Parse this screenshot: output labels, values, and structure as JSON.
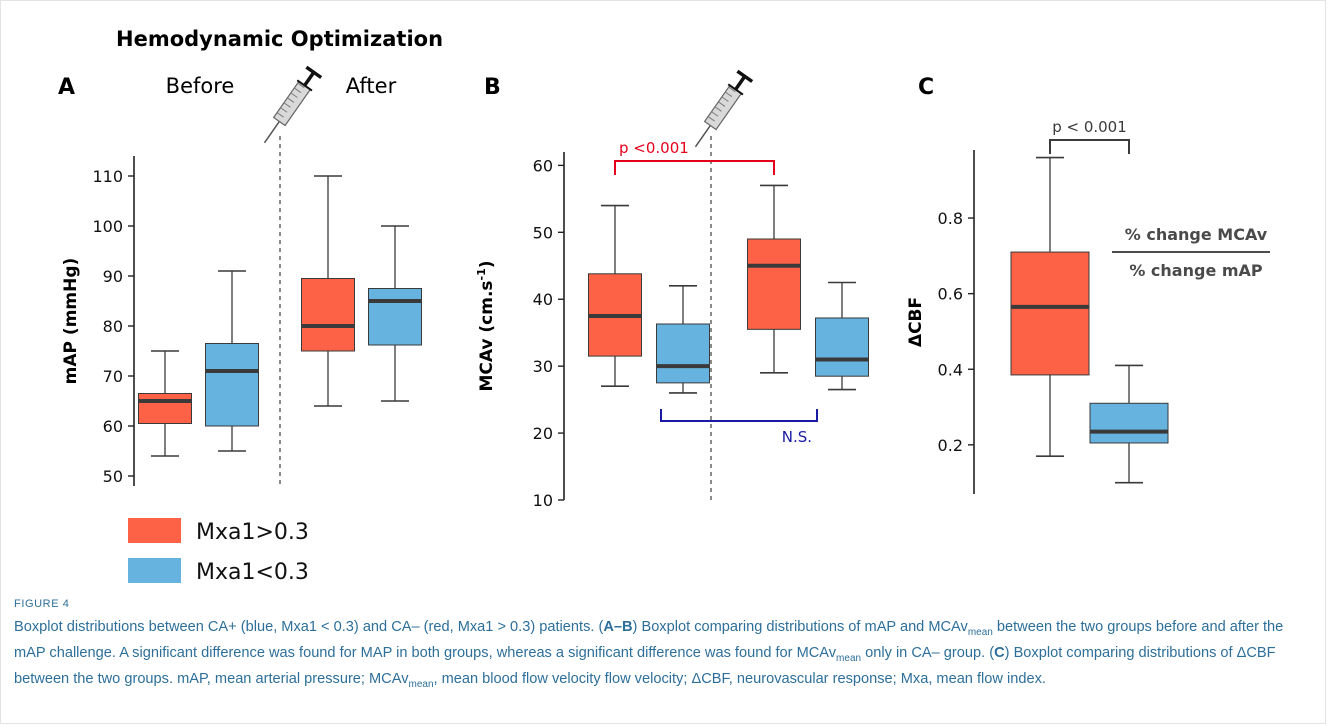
{
  "figure_label": "FIGURE 4",
  "caption": {
    "parts": [
      {
        "t": "Boxplot distributions between CA+ (blue, Mxa1 < 0.3) and CA– (red, Mxa1 > 0.3) patients. ("
      },
      {
        "t": "A–B",
        "b": true
      },
      {
        "t": ") Boxplot comparing distributions of mAP and MCAv"
      },
      {
        "t": "mean",
        "sub": true
      },
      {
        "t": " between the two groups before and after the mAP challenge. A significant difference was found for MAP in both groups, whereas a significant difference was found for MCAv"
      },
      {
        "t": "mean",
        "sub": true
      },
      {
        "t": " only in CA– group. ("
      },
      {
        "t": "C",
        "b": true
      },
      {
        "t": ") Boxplot comparing distributions of ΔCBF between the two groups. mAP, mean arterial pressure; MCAv"
      },
      {
        "t": "mean",
        "sub": true
      },
      {
        "t": ", mean blood flow velocity flow velocity; ΔCBF, neurovascular response; Mxa, mean flow index."
      }
    ]
  },
  "colors": {
    "red": "#fd6146",
    "blue": "#66b3e0",
    "median": "#3a3a3a",
    "sig_red": "#e4001b",
    "sig_blue": "#1a1aa6",
    "caption": "#2d6f9a"
  },
  "legend": {
    "placement": "bottom-left",
    "items": [
      {
        "label": "Mxa1>0.3",
        "color": "#fd6146"
      },
      {
        "label": "Mxa1<0.3",
        "color": "#66b3e0"
      }
    ]
  },
  "chart_data": [
    {
      "panel": "A",
      "type": "boxplot",
      "header": "Hemodynamic Optimization",
      "phase_labels": [
        "Before",
        "After"
      ],
      "ylabel": "mAP (mmHg)",
      "ylim": [
        48,
        114
      ],
      "yticks": [
        50,
        60,
        70,
        80,
        90,
        100,
        110
      ],
      "divider": true,
      "syringe_icon": true,
      "boxes": [
        {
          "group": "Mxa1>0.3",
          "phase": "Before",
          "color": "red",
          "min": 54,
          "q1": 60.5,
          "median": 65,
          "q3": 66.5,
          "max": 75
        },
        {
          "group": "Mxa1<0.3",
          "phase": "Before",
          "color": "blue",
          "min": 55,
          "q1": 60,
          "median": 71,
          "q3": 76.5,
          "max": 91
        },
        {
          "group": "Mxa1>0.3",
          "phase": "After",
          "color": "red",
          "min": 64,
          "q1": 75,
          "median": 80,
          "q3": 89.5,
          "max": 110
        },
        {
          "group": "Mxa1<0.3",
          "phase": "After",
          "color": "blue",
          "min": 65,
          "q1": 76.2,
          "median": 85,
          "q3": 87.5,
          "max": 100
        }
      ],
      "annotations": []
    },
    {
      "panel": "B",
      "type": "boxplot",
      "ylabel": "MCAv (cm.s",
      "ylabel_sup": "-1",
      "ylabel_end": ")",
      "ylim": [
        10,
        62
      ],
      "yticks": [
        10,
        20,
        30,
        40,
        50,
        60
      ],
      "divider": true,
      "syringe_icon": true,
      "boxes": [
        {
          "group": "Mxa1>0.3",
          "phase": "Before",
          "color": "red",
          "min": 27,
          "q1": 31.5,
          "median": 37.5,
          "q3": 43.8,
          "max": 54
        },
        {
          "group": "Mxa1<0.3",
          "phase": "Before",
          "color": "blue",
          "min": 26,
          "q1": 27.5,
          "median": 30,
          "q3": 36.3,
          "max": 42
        },
        {
          "group": "Mxa1>0.3",
          "phase": "After",
          "color": "red",
          "min": 29,
          "q1": 35.5,
          "median": 45,
          "q3": 49,
          "max": 57
        },
        {
          "group": "Mxa1<0.3",
          "phase": "After",
          "color": "blue",
          "min": 26.5,
          "q1": 28.5,
          "median": 31,
          "q3": 37.2,
          "max": 42.5
        }
      ],
      "annotations": [
        {
          "text": "p <0.001",
          "from": 0,
          "to": 2,
          "color": "sig_red",
          "position": "above"
        },
        {
          "text": "N.S.",
          "from": 1,
          "to": 3,
          "color": "sig_blue",
          "position": "below"
        }
      ]
    },
    {
      "panel": "C",
      "type": "boxplot",
      "ylabel": "ΔCBF",
      "ylim": [
        0.07,
        0.98
      ],
      "yticks": [
        0.2,
        0.4,
        0.6,
        0.8
      ],
      "divider": false,
      "syringe_icon": false,
      "ratio_label": {
        "numerator": "% change MCAv",
        "denominator": "% change mAP"
      },
      "boxes": [
        {
          "group": "Mxa1>0.3",
          "color": "red",
          "min": 0.17,
          "q1": 0.385,
          "median": 0.565,
          "q3": 0.71,
          "max": 0.96
        },
        {
          "group": "Mxa1<0.3",
          "color": "blue",
          "min": 0.1,
          "q1": 0.205,
          "median": 0.235,
          "q3": 0.31,
          "max": 0.41
        }
      ],
      "annotations": [
        {
          "text": "p < 0.001",
          "from": 0,
          "to": 1,
          "color": "median",
          "position": "above"
        }
      ]
    }
  ]
}
